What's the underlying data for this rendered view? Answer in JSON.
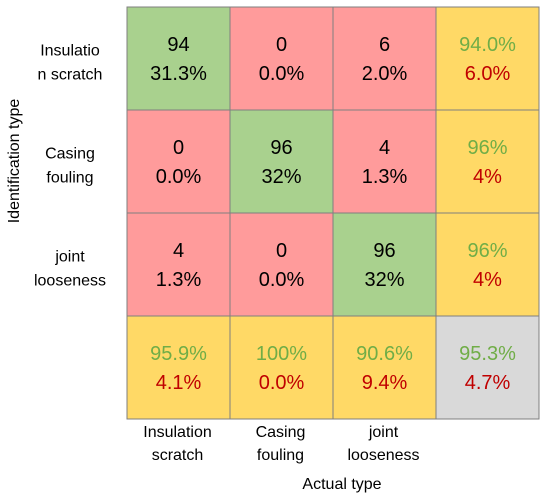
{
  "chart_data": {
    "type": "heatmap",
    "subtype": "confusion-matrix",
    "xlabel": "Actual type",
    "ylabel": "Identification type",
    "row_labels": [
      [
        "Insulatio",
        "n scratch"
      ],
      [
        "Casing",
        "fouling"
      ],
      [
        "joint",
        "looseness"
      ]
    ],
    "col_labels": [
      [
        "Insulation",
        "scratch"
      ],
      [
        "Casing",
        "fouling"
      ],
      [
        "joint",
        "looseness"
      ]
    ],
    "counts": [
      [
        94,
        0,
        6
      ],
      [
        0,
        96,
        4
      ],
      [
        4,
        0,
        96
      ]
    ],
    "cell_percents": [
      [
        "31.3%",
        "0.0%",
        "2.0%"
      ],
      [
        "0.0%",
        "32%",
        "1.3%"
      ],
      [
        "1.3%",
        "0.0%",
        "32%"
      ]
    ],
    "row_summary": [
      {
        "correct": "94.0%",
        "error": "6.0%"
      },
      {
        "correct": "96%",
        "error": "4%"
      },
      {
        "correct": "96%",
        "error": "4%"
      }
    ],
    "col_summary": [
      {
        "correct": "95.9%",
        "error": "4.1%"
      },
      {
        "correct": "100%",
        "error": "0.0%"
      },
      {
        "correct": "90.6%",
        "error": "9.4%"
      }
    ],
    "overall": {
      "correct": "95.3%",
      "error": "4.7%"
    },
    "colors": {
      "correct_cell": "#a9d18e",
      "wrong_cell": "#ff9b9b",
      "summary_cell": "#ffd966",
      "overall_cell": "#d9d9d9",
      "correct_text": "#70ad47",
      "error_text": "#c00000",
      "cell_border": "#7f7f7f"
    },
    "grid": true,
    "legend": "none"
  }
}
